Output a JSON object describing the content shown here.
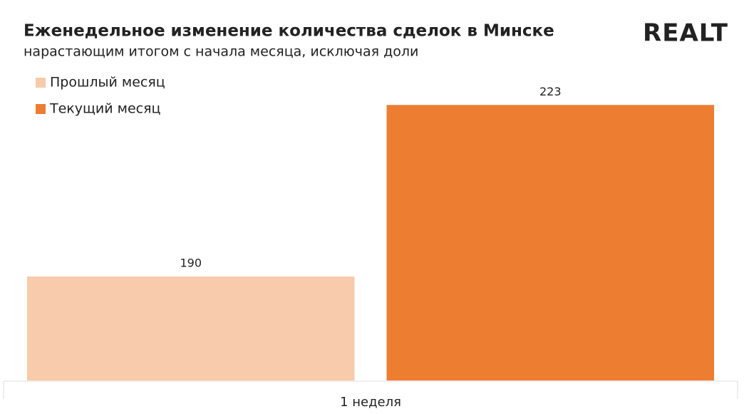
{
  "brand": "REALT",
  "chart_data": {
    "type": "bar",
    "title": "Еженедельное изменение количества сделок в Минске",
    "subtitle": "нарастающим итогом с начала месяца, исключая доли",
    "categories": [
      "1 неделя"
    ],
    "series": [
      {
        "name": "Прошлый месяц",
        "color": "#f7cbab",
        "values": [
          190
        ]
      },
      {
        "name": "Текущий месяц",
        "color": "#ed7d31",
        "values": [
          223
        ]
      }
    ],
    "ylim": [
      170,
      224
    ],
    "legend": "top-left"
  }
}
